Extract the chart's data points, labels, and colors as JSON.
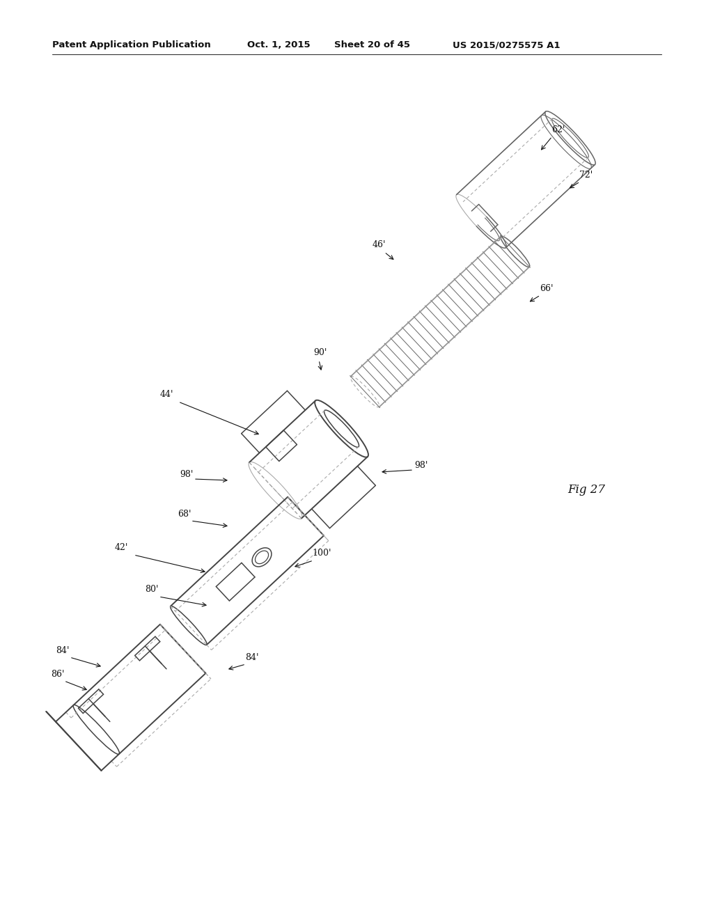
{
  "header_left": "Patent Application Publication",
  "header_date": "Oct. 1, 2015",
  "header_sheet": "Sheet 20 of 45",
  "header_patent": "US 2015/0275575 A1",
  "fig_label": "Fig 27",
  "background_color": "#ffffff",
  "line_color": "#999999",
  "dark_line_color": "#444444",
  "medium_line_color": "#666666"
}
